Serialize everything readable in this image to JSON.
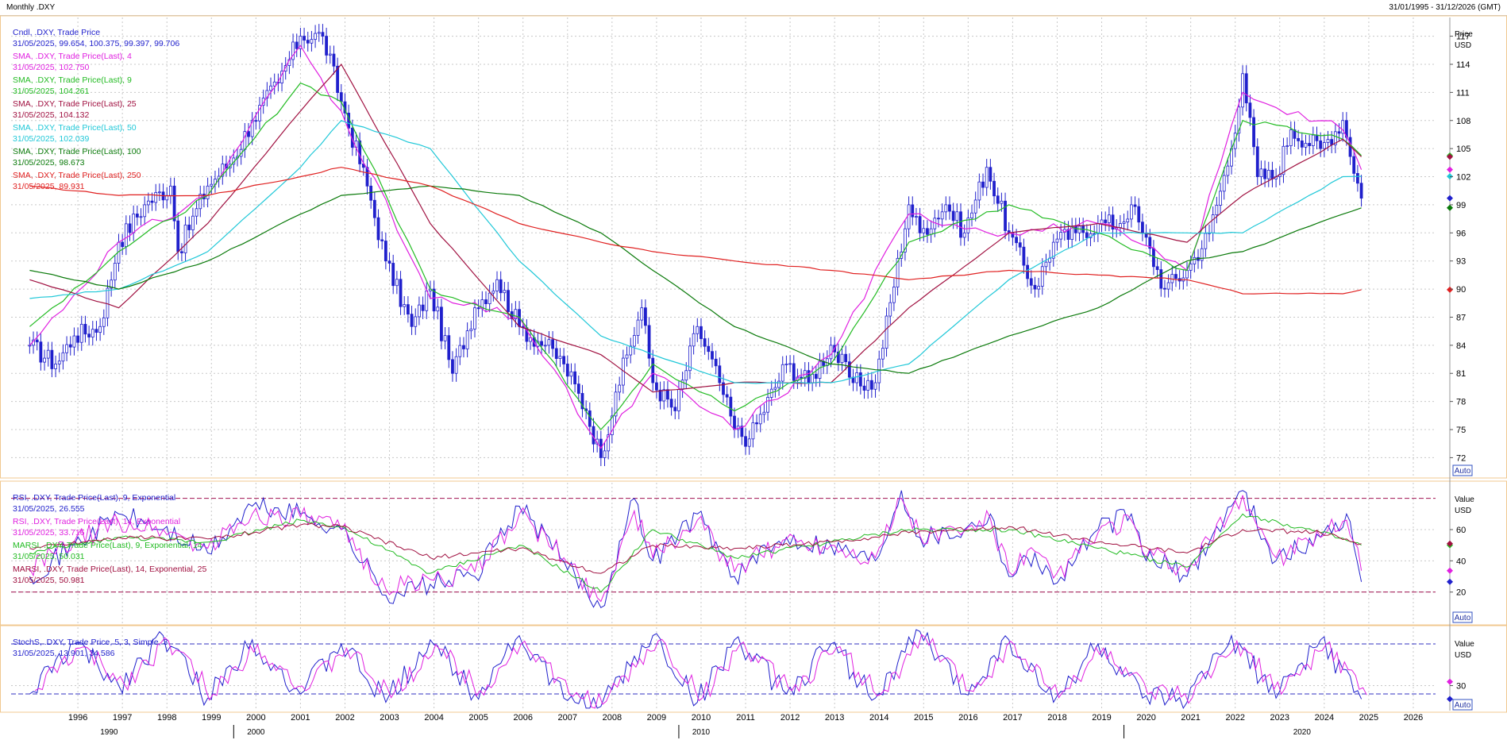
{
  "window": {
    "title": "Monthly .DXY",
    "range": "31/01/1995 - 31/12/2026 (GMT)"
  },
  "price_panel": {
    "axis_title": "Price",
    "axis_unit": "USD",
    "auto_label": "Auto",
    "ticks": [
      72,
      75,
      78,
      81,
      84,
      87,
      90,
      93,
      96,
      99,
      102,
      105,
      108,
      111,
      114,
      117
    ],
    "legend": [
      {
        "name": "Cndl, .DXY, Trade Price",
        "value": "31/05/2025, 99.654, 100.375, 99.397, 99.706",
        "color": "#2222cc"
      },
      {
        "name": "SMA, .DXY, Trade Price(Last),  4",
        "value": "31/05/2025, 102.750",
        "color": "#e020e0"
      },
      {
        "name": "SMA, .DXY, Trade Price(Last),  9",
        "value": "31/05/2025, 104.261",
        "color": "#22bb22"
      },
      {
        "name": "SMA, .DXY, Trade Price(Last),  25",
        "value": "31/05/2025, 104.132",
        "color": "#a01040"
      },
      {
        "name": "SMA, .DXY, Trade Price(Last),  50",
        "value": "31/05/2025, 102.039",
        "color": "#20c8d8"
      },
      {
        "name": "SMA, .DXY, Trade Price(Last),  100",
        "value": "31/05/2025, 98.673",
        "color": "#0a7a0a"
      },
      {
        "name": "SMA, .DXY, Trade Price(Last),  250",
        "value": "31/05/2025, 89.931",
        "color": "#e02020"
      }
    ]
  },
  "rsi_panel": {
    "axis_title": "Value",
    "axis_unit": "USD",
    "auto_label": "Auto",
    "ticks": [
      20,
      40,
      60
    ],
    "legend": [
      {
        "name": "RSI, .DXY, Trade Price(Last),  9, Exponential",
        "value": "31/05/2025, 26.555",
        "color": "#2222cc"
      },
      {
        "name": "RSI, .DXY, Trade Price(Last),  14, Exponential",
        "value": "31/05/2025, 33.716",
        "color": "#e020e0"
      },
      {
        "name": "MARSI, .DXY, Trade Price(Last),  9, Exponential, 14",
        "value": "31/05/2025, 50.031",
        "color": "#22bb22"
      },
      {
        "name": "MARSI, .DXY, Trade Price(Last),  14, Exponential, 25",
        "value": "31/05/2025, 50.981",
        "color": "#a01040"
      }
    ]
  },
  "stoch_panel": {
    "axis_title": "Value",
    "axis_unit": "USD",
    "auto_label": "Auto",
    "ticks": [
      30
    ],
    "legend": [
      {
        "name": "StochS, .DXY, Trade Price,  5, 3, Simple, 3",
        "value": "31/05/2025, 13.901, 34.586",
        "color": "#2222cc"
      }
    ]
  },
  "x_axis": {
    "years": [
      "1996",
      "1997",
      "1998",
      "1999",
      "2000",
      "2001",
      "2002",
      "2003",
      "2004",
      "2005",
      "2006",
      "2007",
      "2008",
      "2009",
      "2010",
      "2011",
      "2012",
      "2013",
      "2014",
      "2015",
      "2016",
      "2017",
      "2018",
      "2019",
      "2020",
      "2021",
      "2022",
      "2023",
      "2024",
      "2025",
      "2026"
    ],
    "decades": [
      "1990",
      "2000",
      "2010",
      "2020"
    ]
  },
  "colors": {
    "candle": "#2020cc",
    "sma4": "#e020e0",
    "sma9": "#22bb22",
    "sma25": "#a01040",
    "sma50": "#20c8d8",
    "sma100": "#0a7a0a",
    "sma250": "#e02020",
    "panel_border": "#f0c890",
    "grid": "#c8c8c8"
  },
  "chart_data": [
    {
      "type": "candlestick",
      "title": "Monthly .DXY",
      "ylabel": "Price USD",
      "ylim": [
        70,
        119
      ],
      "grid": true,
      "series": [
        {
          "name": "Cndl, .DXY, Trade Price",
          "x": [
            "1995-06",
            "1996-01",
            "1996-06",
            "1997-01",
            "1997-06",
            "1998-01",
            "1998-08",
            "1998-10",
            "1999-06",
            "2000-01",
            "2000-06",
            "2001-01",
            "2001-07",
            "2002-01",
            "2002-06",
            "2003-01",
            "2003-06",
            "2004-01",
            "2004-06",
            "2004-12",
            "2005-06",
            "2005-12",
            "2006-06",
            "2007-01",
            "2007-06",
            "2007-12",
            "2008-04",
            "2008-08",
            "2009-03",
            "2009-06",
            "2009-12",
            "2010-06",
            "2010-12",
            "2011-04",
            "2011-08",
            "2012-06",
            "2012-12",
            "2013-06",
            "2013-12",
            "2014-06",
            "2015-03",
            "2015-06",
            "2016-01",
            "2016-06",
            "2016-12",
            "2017-06",
            "2018-01",
            "2018-06",
            "2018-12",
            "2019-06",
            "2019-12",
            "2020-03",
            "2020-06",
            "2020-12",
            "2021-06",
            "2021-12",
            "2022-06",
            "2022-09",
            "2023-01",
            "2023-06",
            "2023-10",
            "2024-06",
            "2024-12",
            "2025-05"
          ],
          "values": [
            84,
            82,
            85,
            86,
            95,
            99,
            101,
            94,
            101,
            104,
            108,
            112,
            117,
            117,
            110,
            101,
            93,
            86,
            90,
            81,
            88,
            91,
            86,
            84,
            82,
            77,
            72,
            79,
            88,
            80,
            77,
            86,
            80,
            75,
            74,
            82,
            80,
            84,
            80,
            80,
            99,
            96,
            99,
            96,
            103,
            96,
            90,
            95,
            96,
            97,
            97,
            99,
            96,
            90,
            92,
            96,
            105,
            113,
            102,
            102,
            107,
            105,
            108,
            99.706
          ]
        },
        {
          "name": "SMA, .DXY, Trade Price(Last),  4",
          "x": [
            "1995-06",
            "1997-06",
            "1999-06",
            "2001-07",
            "2002-06",
            "2004-06",
            "2006-06",
            "2008-04",
            "2009-06",
            "2011-04",
            "2013-06",
            "2015-03",
            "2017-06",
            "2019-06",
            "2021-06",
            "2022-09",
            "2024-12",
            "2025-05"
          ],
          "values": [
            84,
            95,
            100,
            116,
            109,
            89,
            87,
            73,
            81,
            75,
            83,
            98,
            96,
            97,
            92,
            111,
            107,
            102.75
          ]
        },
        {
          "name": "SMA, .DXY, Trade Price(Last),  9",
          "x": [
            "1995-06",
            "1997-06",
            "1999-06",
            "2001-07",
            "2002-06",
            "2004-06",
            "2006-06",
            "2008-04",
            "2009-06",
            "2011-04",
            "2013-06",
            "2015-03",
            "2017-06",
            "2019-06",
            "2021-06",
            "2022-09",
            "2024-12",
            "2025-05"
          ],
          "values": [
            86,
            94,
            100,
            112,
            110,
            90,
            87,
            75,
            82,
            77,
            82,
            95,
            99,
            96,
            92,
            108,
            106,
            104.261
          ]
        },
        {
          "name": "SMA, .DXY, Trade Price(Last),  25",
          "x": [
            "1995-06",
            "1997-06",
            "1999-06",
            "2001-07",
            "2002-06",
            "2004-06",
            "2006-06",
            "2008-04",
            "2009-06",
            "2011-04",
            "2013-06",
            "2015-03",
            "2017-06",
            "2019-06",
            "2021-06",
            "2022-09",
            "2024-12",
            "2025-05"
          ],
          "values": [
            91,
            88,
            97,
            109,
            114,
            97,
            86,
            83,
            79,
            80,
            80,
            88,
            96,
            97,
            95,
            100,
            106,
            104.132
          ]
        },
        {
          "name": "SMA, .DXY, Trade Price(Last),  50",
          "x": [
            "1995-06",
            "1997-06",
            "1999-06",
            "2001-07",
            "2002-06",
            "2004-06",
            "2006-06",
            "2008-04",
            "2009-06",
            "2011-04",
            "2013-06",
            "2015-03",
            "2017-06",
            "2019-06",
            "2021-06",
            "2022-09",
            "2024-12",
            "2025-05"
          ],
          "values": [
            89,
            90,
            94,
            103,
            108,
            105,
            93,
            85,
            83,
            80,
            80,
            82,
            91,
            96,
            96,
            96,
            102,
            102.039
          ]
        },
        {
          "name": "SMA, .DXY, Trade Price(Last),  100",
          "x": [
            "1995-06",
            "1997-06",
            "1999-06",
            "2001-07",
            "2002-06",
            "2004-06",
            "2006-06",
            "2008-04",
            "2009-06",
            "2011-04",
            "2013-06",
            "2015-03",
            "2017-06",
            "2019-06",
            "2021-06",
            "2022-09",
            "2024-12",
            "2025-05"
          ],
          "values": [
            92,
            90,
            93,
            98,
            100,
            101,
            100,
            96,
            92,
            86,
            82,
            81,
            85,
            88,
            93,
            94,
            98,
            98.673
          ]
        },
        {
          "name": "SMA, .DXY, Trade Price(Last),  250",
          "x": [
            "1995-06",
            "1997-06",
            "1999-06",
            "2001-07",
            "2002-06",
            "2004-06",
            "2006-06",
            "2008-04",
            "2009-06",
            "2011-04",
            "2013-06",
            "2015-03",
            "2017-06",
            "2019-06",
            "2021-06",
            "2022-09",
            "2024-12",
            "2025-05"
          ],
          "values": [
            101,
            100,
            100,
            102,
            103,
            101,
            97,
            95,
            94,
            93,
            92,
            91,
            92,
            91.5,
            91,
            89.5,
            89.5,
            89.931
          ]
        }
      ]
    },
    {
      "type": "line",
      "ylabel": "Value USD",
      "ylim": [
        0,
        90
      ],
      "grid": true,
      "series": [
        {
          "name": "RSI, .DXY, Trade Price(Last),  9, Exponential",
          "x": [
            "1995-06",
            "1996-06",
            "1997-06",
            "1998-06",
            "1999-06",
            "2000-06",
            "2001-07",
            "2002-06",
            "2003-06",
            "2004-06",
            "2005-06",
            "2006-06",
            "2007-06",
            "2008-04",
            "2009-01",
            "2009-06",
            "2010-06",
            "2011-04",
            "2012-06",
            "2013-06",
            "2014-06",
            "2015-01",
            "2015-06",
            "2016-06",
            "2017-01",
            "2017-06",
            "2018-01",
            "2018-06",
            "2019-06",
            "2020-03",
            "2020-06",
            "2021-06",
            "2022-06",
            "2022-09",
            "2023-06",
            "2024-06",
            "2025-01",
            "2025-05"
          ],
          "values": [
            30,
            50,
            70,
            60,
            45,
            75,
            70,
            60,
            18,
            25,
            30,
            75,
            40,
            10,
            80,
            40,
            70,
            30,
            55,
            50,
            40,
            85,
            55,
            60,
            70,
            30,
            45,
            25,
            60,
            70,
            45,
            30,
            75,
            85,
            40,
            55,
            70,
            26.555
          ]
        },
        {
          "name": "RSI, .DXY, Trade Price(Last),  14, Exponential",
          "x": [
            "1995-06",
            "1996-06",
            "1997-06",
            "1998-06",
            "1999-06",
            "2000-06",
            "2001-07",
            "2002-06",
            "2003-06",
            "2004-06",
            "2005-06",
            "2006-06",
            "2007-06",
            "2008-04",
            "2009-01",
            "2009-06",
            "2010-06",
            "2011-04",
            "2012-06",
            "2013-06",
            "2014-06",
            "2015-01",
            "2015-06",
            "2016-06",
            "2017-01",
            "2017-06",
            "2018-01",
            "2018-06",
            "2019-06",
            "2020-03",
            "2020-06",
            "2021-06",
            "2022-06",
            "2022-09",
            "2023-06",
            "2024-06",
            "2025-01",
            "2025-05"
          ],
          "values": [
            35,
            52,
            65,
            60,
            48,
            70,
            68,
            60,
            22,
            28,
            33,
            70,
            42,
            14,
            72,
            42,
            66,
            33,
            54,
            50,
            42,
            80,
            56,
            59,
            67,
            33,
            46,
            29,
            58,
            66,
            46,
            33,
            72,
            82,
            42,
            55,
            66,
            33.716
          ]
        },
        {
          "name": "MARSI, .DXY, Trade Price(Last),  9, Exponential, 14",
          "x": [
            "1995-06",
            "1997-06",
            "1999-06",
            "2001-07",
            "2002-06",
            "2004-06",
            "2006-06",
            "2008-04",
            "2009-06",
            "2011-04",
            "2013-06",
            "2015-03",
            "2017-06",
            "2019-06",
            "2021-06",
            "2022-09",
            "2024-06",
            "2025-05"
          ],
          "values": [
            45,
            55,
            52,
            66,
            62,
            32,
            50,
            20,
            60,
            42,
            52,
            60,
            60,
            48,
            36,
            70,
            58,
            50.031
          ]
        },
        {
          "name": "MARSI, .DXY, Trade Price(Last),  14, Exponential, 25",
          "x": [
            "1995-06",
            "1997-06",
            "1999-06",
            "2001-07",
            "2002-06",
            "2004-06",
            "2006-06",
            "2008-04",
            "2009-06",
            "2011-04",
            "2013-06",
            "2015-03",
            "2017-06",
            "2019-06",
            "2021-06",
            "2022-09",
            "2024-06",
            "2025-05"
          ],
          "values": [
            48,
            55,
            54,
            63,
            62,
            42,
            48,
            32,
            50,
            48,
            52,
            58,
            62,
            52,
            45,
            60,
            58,
            50.981
          ]
        }
      ]
    },
    {
      "type": "line",
      "ylabel": "Value USD",
      "ylim": [
        0,
        100
      ],
      "grid": true,
      "series": [
        {
          "name": "StochS, .DXY, Trade Price,  5, 3, Simple, 3",
          "x": [
            "1995-06",
            "1996-06",
            "1997-06",
            "1998-06",
            "1999-06",
            "2000-06",
            "2001-07",
            "2002-06",
            "2003-06",
            "2004-06",
            "2005-06",
            "2006-06",
            "2007-06",
            "2008-04",
            "2009-06",
            "2010-06",
            "2011-04",
            "2012-06",
            "2013-06",
            "2014-06",
            "2015-06",
            "2016-06",
            "2017-06",
            "2018-06",
            "2019-06",
            "2020-06",
            "2021-06",
            "2022-06",
            "2023-06",
            "2024-06",
            "2025-05"
          ],
          "values": [
            20,
            80,
            30,
            90,
            15,
            85,
            20,
            80,
            10,
            85,
            20,
            90,
            15,
            5,
            90,
            10,
            85,
            20,
            80,
            15,
            95,
            20,
            85,
            10,
            80,
            15,
            10,
            90,
            15,
            85,
            13.901
          ]
        }
      ]
    }
  ]
}
